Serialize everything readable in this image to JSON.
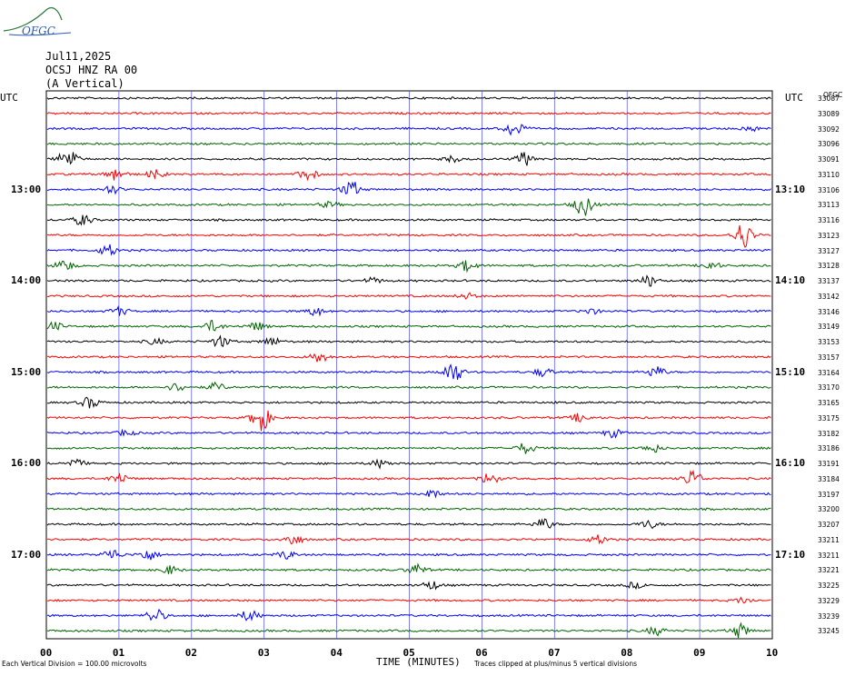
{
  "header": {
    "logo_text": "OFGC",
    "date": "Jul11,2025",
    "station": "OCSJ HNZ RA 00",
    "component": "(A Vertical)"
  },
  "left_axis_title": "UTC",
  "right_axis_title": "UTC",
  "right_axis_header": "OFGC",
  "colors": {
    "trace_cycle": [
      "#000000",
      "#ff0000",
      "#0000ff",
      "#006400"
    ],
    "grid": "#4a4af0",
    "frame": "#000000"
  },
  "chart_data": {
    "type": "line",
    "title": "",
    "xlabel": "TIME (MINUTES)",
    "x_ticks": [
      "00",
      "01",
      "02",
      "03",
      "04",
      "05",
      "06",
      "07",
      "08",
      "09",
      "10"
    ],
    "xlim": [
      0,
      10
    ],
    "rows_per_hour": 6,
    "left_time_labels": [
      {
        "row": 6,
        "text": "13:00"
      },
      {
        "row": 12,
        "text": "14:00"
      },
      {
        "row": 18,
        "text": "15:00"
      },
      {
        "row": 24,
        "text": "16:00"
      },
      {
        "row": 30,
        "text": "17:00"
      }
    ],
    "right_time_labels": [
      {
        "row": 6,
        "text": "13:10"
      },
      {
        "row": 12,
        "text": "14:10"
      },
      {
        "row": 18,
        "text": "15:10"
      },
      {
        "row": 24,
        "text": "16:10"
      },
      {
        "row": 30,
        "text": "17:10"
      }
    ],
    "right_row_values": [
      "33087",
      "33089",
      "33092",
      "33096",
      "33091",
      "33110",
      "33106",
      "33113",
      "33116",
      "33123",
      "33127",
      "33128",
      "33137",
      "33142",
      "33146",
      "33149",
      "33153",
      "33157",
      "33164",
      "33170",
      "33165",
      "33175",
      "33182",
      "33186",
      "33191",
      "33184",
      "33197",
      "33200",
      "33207",
      "33211",
      "33211",
      "33221",
      "33225",
      "33229",
      "33239",
      "33245"
    ],
    "events": [
      {
        "row": 4,
        "t": 0.3,
        "amp": 4
      },
      {
        "row": 4,
        "t": 6.6,
        "amp": 2.5
      },
      {
        "row": 4,
        "t": 5.6,
        "amp": 1
      },
      {
        "row": 2,
        "t": 6.45,
        "amp": 3
      },
      {
        "row": 2,
        "t": 9.7,
        "amp": 1
      },
      {
        "row": 5,
        "t": 0.95,
        "amp": 2.5
      },
      {
        "row": 5,
        "t": 1.5,
        "amp": 1.5
      },
      {
        "row": 5,
        "t": 3.6,
        "amp": 2
      },
      {
        "row": 6,
        "t": 0.9,
        "amp": 1.5
      },
      {
        "row": 6,
        "t": 4.2,
        "amp": 3
      },
      {
        "row": 7,
        "t": 7.4,
        "amp": 4
      },
      {
        "row": 7,
        "t": 3.9,
        "amp": 1
      },
      {
        "row": 8,
        "t": 0.5,
        "amp": 2
      },
      {
        "row": 9,
        "t": 9.6,
        "amp": 5
      },
      {
        "row": 10,
        "t": 0.85,
        "amp": 2
      },
      {
        "row": 11,
        "t": 0.25,
        "amp": 2
      },
      {
        "row": 11,
        "t": 5.8,
        "amp": 2
      },
      {
        "row": 11,
        "t": 9.15,
        "amp": 1.5
      },
      {
        "row": 12,
        "t": 8.3,
        "amp": 2
      },
      {
        "row": 12,
        "t": 4.5,
        "amp": 1
      },
      {
        "row": 13,
        "t": 5.8,
        "amp": 1
      },
      {
        "row": 14,
        "t": 1.0,
        "amp": 1.5
      },
      {
        "row": 14,
        "t": 3.7,
        "amp": 1.5
      },
      {
        "row": 14,
        "t": 7.5,
        "amp": 1
      },
      {
        "row": 15,
        "t": 0.1,
        "amp": 1.5
      },
      {
        "row": 15,
        "t": 2.3,
        "amp": 2
      },
      {
        "row": 15,
        "t": 2.9,
        "amp": 1.5
      },
      {
        "row": 16,
        "t": 2.4,
        "amp": 2
      },
      {
        "row": 16,
        "t": 3.1,
        "amp": 1.5
      },
      {
        "row": 16,
        "t": 1.5,
        "amp": 1
      },
      {
        "row": 17,
        "t": 3.75,
        "amp": 2
      },
      {
        "row": 18,
        "t": 5.6,
        "amp": 4
      },
      {
        "row": 18,
        "t": 6.85,
        "amp": 1.5
      },
      {
        "row": 18,
        "t": 8.4,
        "amp": 2
      },
      {
        "row": 19,
        "t": 1.8,
        "amp": 1.5
      },
      {
        "row": 19,
        "t": 2.35,
        "amp": 1.5
      },
      {
        "row": 20,
        "t": 0.6,
        "amp": 2
      },
      {
        "row": 21,
        "t": 2.95,
        "amp": 5
      },
      {
        "row": 21,
        "t": 7.35,
        "amp": 1.5
      },
      {
        "row": 22,
        "t": 1.1,
        "amp": 1
      },
      {
        "row": 22,
        "t": 7.8,
        "amp": 1.5
      },
      {
        "row": 23,
        "t": 6.6,
        "amp": 2
      },
      {
        "row": 23,
        "t": 8.35,
        "amp": 1.5
      },
      {
        "row": 24,
        "t": 0.4,
        "amp": 1.5
      },
      {
        "row": 24,
        "t": 4.6,
        "amp": 1.5
      },
      {
        "row": 25,
        "t": 1.0,
        "amp": 2
      },
      {
        "row": 25,
        "t": 6.1,
        "amp": 2
      },
      {
        "row": 25,
        "t": 8.9,
        "amp": 3
      },
      {
        "row": 26,
        "t": 5.3,
        "amp": 1.5
      },
      {
        "row": 28,
        "t": 6.85,
        "amp": 2
      },
      {
        "row": 28,
        "t": 8.3,
        "amp": 1.5
      },
      {
        "row": 29,
        "t": 3.4,
        "amp": 2
      },
      {
        "row": 29,
        "t": 7.6,
        "amp": 1.5
      },
      {
        "row": 30,
        "t": 0.9,
        "amp": 2
      },
      {
        "row": 30,
        "t": 1.4,
        "amp": 2
      },
      {
        "row": 30,
        "t": 3.3,
        "amp": 1.5
      },
      {
        "row": 31,
        "t": 1.7,
        "amp": 1.5
      },
      {
        "row": 31,
        "t": 5.1,
        "amp": 2
      },
      {
        "row": 32,
        "t": 5.3,
        "amp": 1.5
      },
      {
        "row": 32,
        "t": 8.1,
        "amp": 1
      },
      {
        "row": 33,
        "t": 9.6,
        "amp": 1
      },
      {
        "row": 34,
        "t": 1.5,
        "amp": 2.5
      },
      {
        "row": 34,
        "t": 2.8,
        "amp": 2
      },
      {
        "row": 35,
        "t": 8.4,
        "amp": 1.5
      },
      {
        "row": 35,
        "t": 9.55,
        "amp": 2.5
      }
    ]
  },
  "footer": {
    "left": "Each Vertical Division =  100.00 microvolts",
    "right": "Traces clipped at plus/minus 5 vertical divisions"
  }
}
